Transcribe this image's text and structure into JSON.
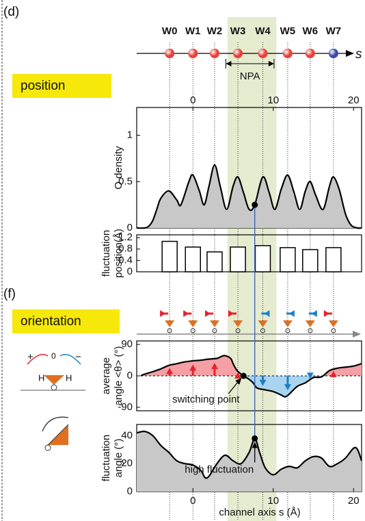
{
  "chart_data": [
    {
      "type": "schematic",
      "panel_label": "(d)",
      "labels": [
        "W0",
        "W1",
        "W2",
        "W3",
        "W4",
        "W5",
        "W6",
        "W7"
      ],
      "x": [
        -2.9,
        0,
        2.7,
        5.6,
        8.7,
        11.8,
        14.6,
        17.5
      ],
      "colors": [
        "#e8413a",
        "#e8413a",
        "#e8413a",
        "#e8413a",
        "#e8413a",
        "#e8413a",
        "#e8413a",
        "#3b48a8"
      ],
      "axis_label": "s",
      "annotation": "NPA",
      "annotation_range": [
        4.1,
        10.1
      ],
      "highlight": [
        4.3,
        10.4
      ],
      "highlight_color": "#e4ebcf"
    },
    {
      "type": "area",
      "tag": "position",
      "ylabel": [
        "O density"
      ],
      "xlim": [
        -7,
        21
      ],
      "xticks": [
        0,
        10,
        20
      ],
      "ylim": [
        0,
        1.3
      ],
      "yticks": [
        0,
        0.5,
        1
      ],
      "x": [
        -7,
        -6,
        -5.5,
        -5,
        -4.5,
        -4,
        -3,
        -2,
        -1.5,
        -0.5,
        0,
        0.8,
        1.4,
        2,
        2.7,
        3.4,
        4.2,
        5,
        5.6,
        6.3,
        7,
        7.7,
        8.7,
        9.5,
        10.2,
        11,
        11.8,
        12.6,
        13.3,
        14,
        14.6,
        15.3,
        16.2,
        17,
        17.5,
        18.2,
        19,
        19.7,
        20.5,
        21
      ],
      "values": [
        0,
        0,
        0.02,
        0.08,
        0.2,
        0.32,
        0.4,
        0.3,
        0.25,
        0.5,
        0.57,
        0.4,
        0.25,
        0.45,
        0.68,
        0.45,
        0.2,
        0.45,
        0.55,
        0.38,
        0.2,
        0.25,
        0.55,
        0.38,
        0.2,
        0.42,
        0.57,
        0.38,
        0.2,
        0.4,
        0.5,
        0.35,
        0.2,
        0.45,
        0.55,
        0.42,
        0.15,
        0.03,
        0,
        0
      ],
      "color": "#c8c8c8",
      "marker": {
        "x": 7.7,
        "y": 0.25
      }
    },
    {
      "type": "bar",
      "ylabel": [
        "fluctuation",
        "position(Å)"
      ],
      "xlim": [
        -7,
        21
      ],
      "ylim": [
        0,
        1.3
      ],
      "yticks": [
        0,
        0.4,
        0.8,
        1.2
      ],
      "x": [
        -2.9,
        0,
        2.7,
        5.6,
        8.7,
        11.8,
        14.6,
        17.5
      ],
      "values": [
        1.07,
        0.87,
        0.7,
        0.87,
        0.92,
        0.85,
        0.78,
        0.85
      ],
      "color": "#ffffff"
    },
    {
      "type": "signed-area",
      "panel_label": "(f)",
      "tag": "orientation",
      "ylabel": [
        "average",
        "angle <θ> (°)"
      ],
      "xlim": [
        -7,
        21
      ],
      "ylim": [
        -100,
        100
      ],
      "yticks": [
        -90,
        0,
        90
      ],
      "x": [
        -6.5,
        -6,
        -5,
        -4,
        -3,
        -2,
        -1,
        0,
        1,
        2,
        3,
        3.5,
        4,
        4.7,
        5,
        5.5,
        6.3,
        7,
        7.5,
        8,
        9,
        10,
        11,
        11.5,
        12,
        13,
        14,
        15,
        16,
        17,
        18,
        19,
        20,
        21
      ],
      "values": [
        0,
        5,
        12,
        20,
        30,
        35,
        40,
        43,
        45,
        48,
        50,
        55,
        58,
        50,
        35,
        15,
        0,
        -10,
        -20,
        -35,
        -40,
        -45,
        -55,
        -60,
        -52,
        -30,
        -20,
        -5,
        -3,
        15,
        22,
        25,
        28,
        35
      ],
      "pos_color": "#f4a0a5",
      "neg_color": "#a8d4f0",
      "arrow_pos_color": "#e8202a",
      "arrow_neg_color": "#1f7fc4",
      "marker": {
        "x": 6.3,
        "y": 0
      },
      "annotation": "switching point",
      "icon_labels": [
        "+",
        "0",
        "−",
        "H",
        "H"
      ]
    },
    {
      "type": "area",
      "ylabel": [
        "fluctuation",
        "angle (°)"
      ],
      "xlim": [
        -7,
        21
      ],
      "xticks": [
        0,
        10,
        20
      ],
      "ylim": [
        0,
        48
      ],
      "yticks": [
        0,
        20,
        40
      ],
      "x": [
        -7,
        -6,
        -5,
        -4,
        -3,
        -2,
        -1,
        0,
        1,
        1.5,
        2,
        3,
        4,
        5,
        6,
        7,
        7.7,
        8.3,
        9,
        10,
        11,
        12,
        13,
        14,
        15,
        16,
        17,
        18,
        19,
        20,
        20.5,
        21
      ],
      "values": [
        42,
        43,
        40,
        33,
        28,
        22,
        20,
        19,
        15,
        10,
        11,
        20,
        26,
        22,
        20,
        28,
        38,
        28,
        17,
        12,
        16,
        18,
        17,
        22,
        25,
        24,
        18,
        20,
        24,
        31,
        30,
        22
      ],
      "color": "#c8c8c8",
      "marker": {
        "x": 7.7,
        "y": 38
      },
      "annotation": "high fluctuation",
      "xlabel": "channel axis s (Å)"
    }
  ]
}
